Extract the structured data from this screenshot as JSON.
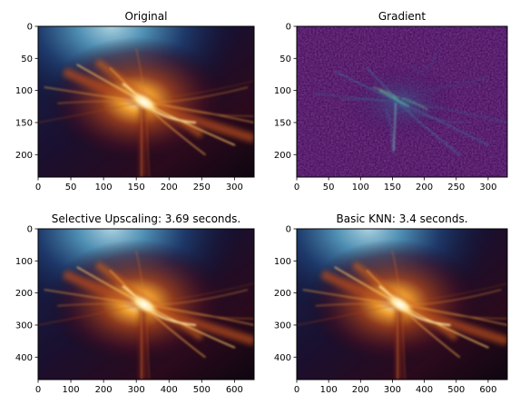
{
  "chart_data": [
    {
      "type": "heatmap",
      "title": "Original",
      "colormap": "icefire-like",
      "xlim": [
        0,
        330
      ],
      "ylim": [
        235,
        0
      ],
      "xticks": [
        0,
        50,
        100,
        150,
        200,
        250,
        300
      ],
      "yticks": [
        0,
        50,
        100,
        150,
        200
      ]
    },
    {
      "type": "heatmap",
      "title": "Gradient",
      "colormap": "viridis",
      "xlim": [
        0,
        330
      ],
      "ylim": [
        235,
        0
      ],
      "xticks": [
        0,
        50,
        100,
        150,
        200,
        250,
        300
      ],
      "yticks": [
        0,
        50,
        100,
        150,
        200
      ]
    },
    {
      "type": "heatmap",
      "title": "Selective Upscaling: 3.69 seconds.",
      "colormap": "icefire-like",
      "xlim": [
        0,
        660
      ],
      "ylim": [
        470,
        0
      ],
      "xticks": [
        0,
        100,
        200,
        300,
        400,
        500,
        600
      ],
      "yticks": [
        0,
        100,
        200,
        300,
        400
      ]
    },
    {
      "type": "heatmap",
      "title": "Basic KNN: 3.4 seconds.",
      "colormap": "icefire-like",
      "xlim": [
        0,
        660
      ],
      "ylim": [
        470,
        0
      ],
      "xticks": [
        0,
        100,
        200,
        300,
        400,
        500,
        600
      ],
      "yticks": [
        0,
        100,
        200,
        300,
        400
      ]
    }
  ]
}
